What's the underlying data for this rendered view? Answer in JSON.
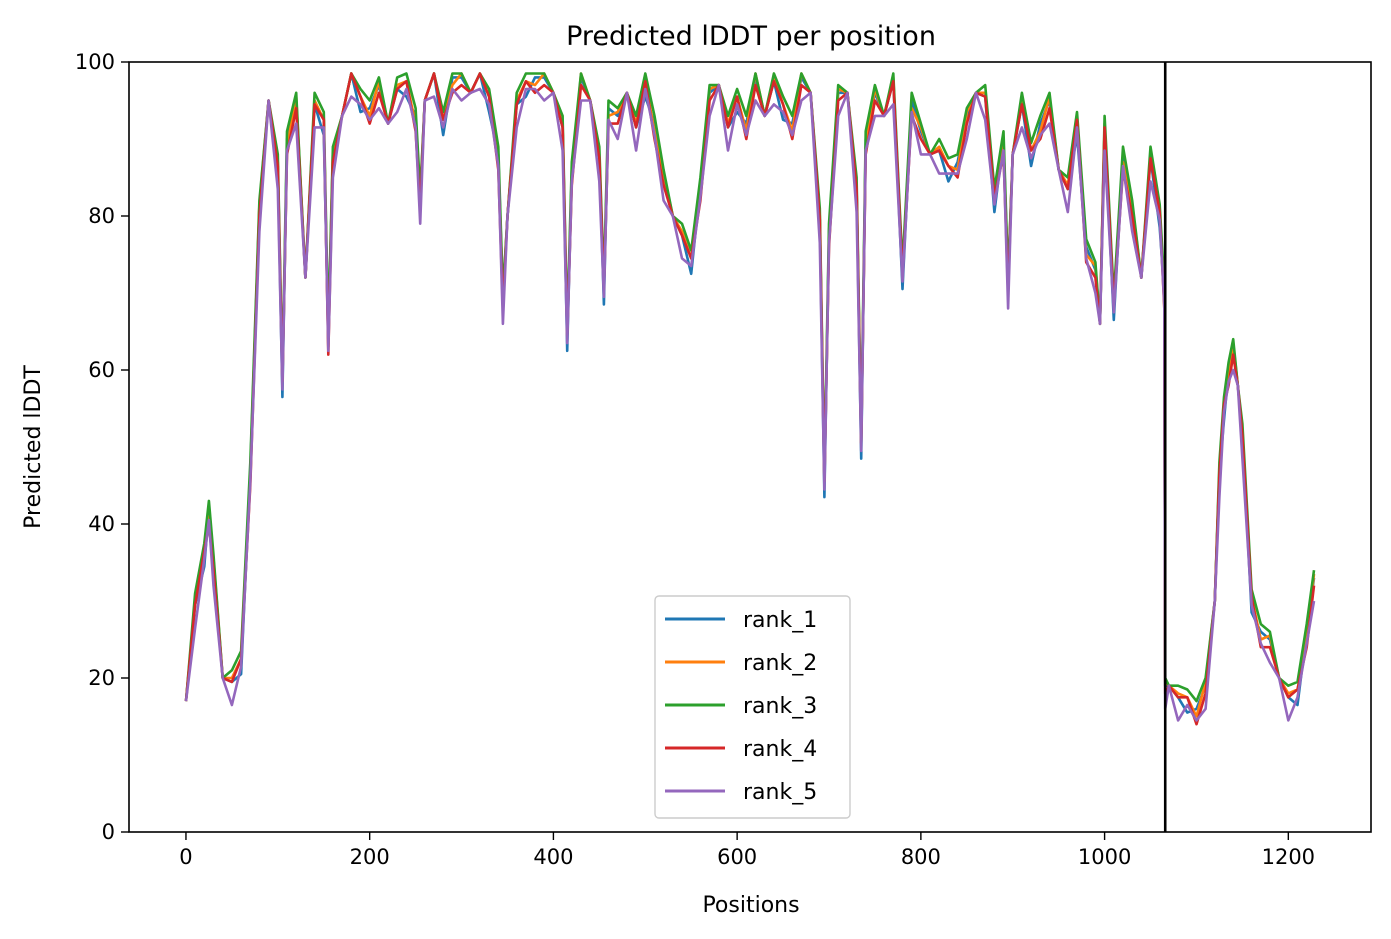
{
  "chart_data": {
    "type": "line",
    "title": "Predicted lDDT per position",
    "xlabel": "Positions",
    "ylabel": "Predicted lDDT",
    "xlim": [
      -62,
      1290
    ],
    "ylim": [
      0,
      100
    ],
    "xticks": [
      0,
      200,
      400,
      600,
      800,
      1000,
      1200
    ],
    "yticks": [
      0,
      20,
      40,
      60,
      80,
      100
    ],
    "grid": false,
    "legend_position": "lower center",
    "chain_boundary_x": 1066,
    "series": [
      {
        "name": "rank_1",
        "color": "#1f77b4"
      },
      {
        "name": "rank_2",
        "color": "#ff7f0e"
      },
      {
        "name": "rank_3",
        "color": "#2ca02c"
      },
      {
        "name": "rank_4",
        "color": "#d62728"
      },
      {
        "name": "rank_5",
        "color": "#9467bd"
      }
    ],
    "x": [
      0,
      10,
      20,
      25,
      30,
      40,
      50,
      60,
      70,
      80,
      90,
      100,
      105,
      110,
      120,
      130,
      140,
      150,
      155,
      160,
      170,
      180,
      190,
      200,
      210,
      220,
      230,
      240,
      250,
      255,
      260,
      270,
      280,
      290,
      300,
      310,
      320,
      330,
      340,
      345,
      350,
      360,
      370,
      380,
      390,
      400,
      410,
      415,
      420,
      430,
      440,
      450,
      455,
      460,
      470,
      480,
      490,
      500,
      510,
      520,
      530,
      540,
      550,
      560,
      570,
      580,
      590,
      600,
      610,
      620,
      630,
      640,
      650,
      660,
      670,
      680,
      690,
      695,
      700,
      710,
      720,
      730,
      735,
      740,
      750,
      760,
      770,
      780,
      790,
      800,
      810,
      820,
      830,
      840,
      850,
      860,
      870,
      880,
      890,
      895,
      900,
      910,
      920,
      930,
      940,
      950,
      960,
      970,
      980,
      990,
      995,
      1000,
      1010,
      1020,
      1030,
      1040,
      1050,
      1060,
      1065,
      1066,
      1070,
      1080,
      1090,
      1100,
      1110,
      1120,
      1125,
      1130,
      1135,
      1140,
      1145,
      1150,
      1160,
      1170,
      1180,
      1190,
      1200,
      1210,
      1220,
      1228
    ],
    "base": [
      17,
      28,
      36,
      42,
      34,
      20,
      18,
      22,
      47,
      80,
      95,
      85,
      58,
      90,
      94,
      72,
      93,
      92,
      64,
      87,
      93,
      97,
      95,
      94,
      96,
      92,
      95,
      97,
      93,
      81,
      95,
      97,
      92,
      98,
      97,
      96,
      98,
      95,
      88,
      68,
      80,
      93,
      97,
      98,
      97,
      96,
      90,
      64,
      86,
      97,
      95,
      86,
      70,
      94,
      92,
      96,
      90,
      97,
      92,
      84,
      80,
      76,
      74,
      84,
      95,
      97,
      90,
      95,
      92,
      97,
      93,
      96,
      94,
      92,
      97,
      96,
      78,
      45,
      78,
      95,
      96,
      82,
      50,
      90,
      95,
      93,
      96,
      72,
      95,
      90,
      88,
      87,
      86,
      87,
      92,
      96,
      94,
      82,
      90,
      70,
      88,
      93,
      88,
      92,
      94,
      86,
      82,
      92,
      76,
      72,
      66,
      90,
      68,
      88,
      80,
      72,
      86,
      80,
      70,
      18,
      19,
      16,
      17,
      16,
      18,
      30,
      45,
      55,
      60,
      62,
      58,
      50,
      30,
      26,
      24,
      20,
      16,
      18,
      26,
      32
    ],
    "offsets": [
      [
        0,
        1.5,
        -1.5,
        0,
        1
      ],
      [
        0,
        2,
        0.5,
        -1,
        1.5
      ],
      [
        0,
        3,
        1.5,
        1,
        2
      ],
      [
        0,
        1.5,
        0.5,
        -2,
        0
      ],
      [
        0,
        -1.5,
        -0.5,
        -1.5,
        -2
      ]
    ]
  }
}
